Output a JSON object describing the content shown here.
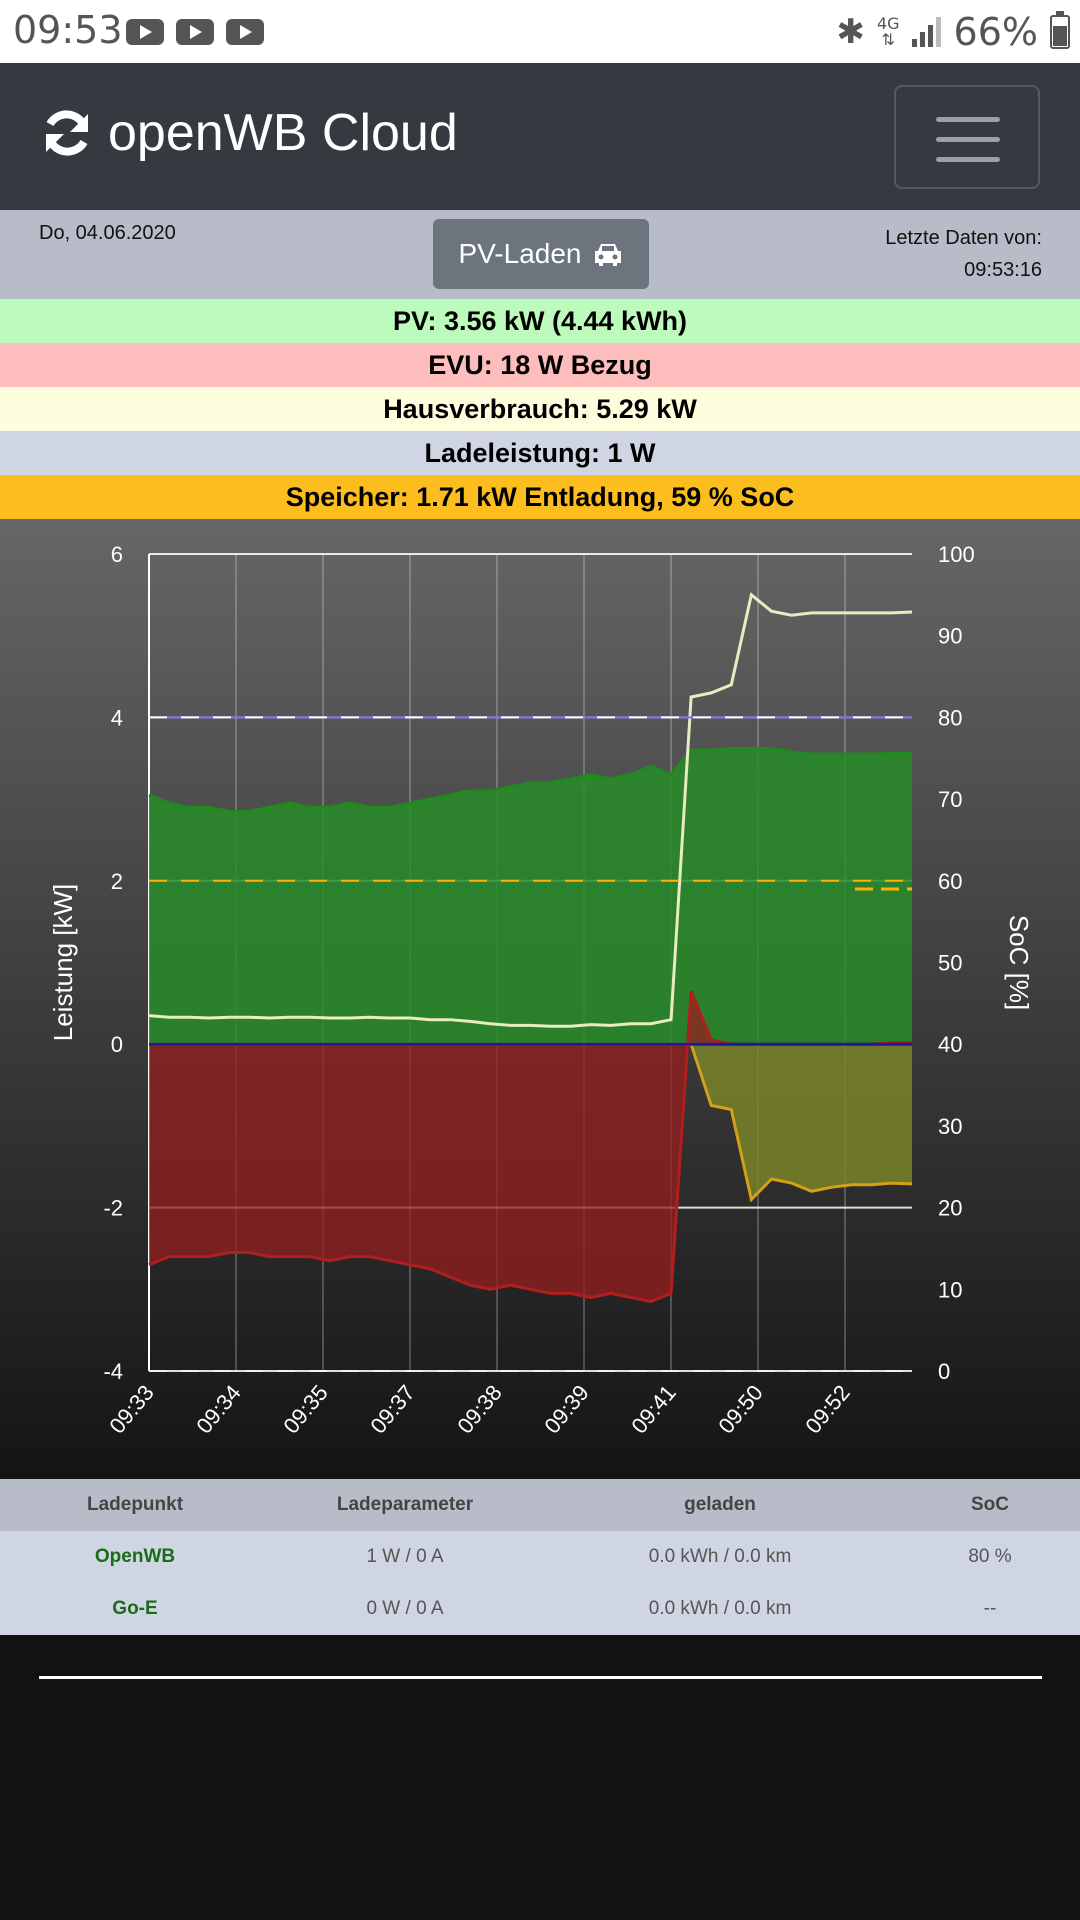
{
  "statusbar": {
    "time": "09:53",
    "network": "4G",
    "battery": "66%"
  },
  "header": {
    "title": "openWB Cloud",
    "logo_icon": "sync-icon",
    "menu_icon": "hamburger-icon"
  },
  "info": {
    "date": "Do, 04.06.2020",
    "mode_button": "PV-Laden",
    "mode_icon": "car-icon",
    "last_data_label": "Letzte Daten von:",
    "last_data_time": "09:53:16"
  },
  "stats": [
    {
      "text": "PV: 3.56 kW (4.44 kWh)",
      "color": "#bdfbbd"
    },
    {
      "text": "EVU: 18 W Bezug",
      "color": "#fdbdbd"
    },
    {
      "text": "Hausverbrauch: 5.29 kW",
      "color": "#fefedf"
    },
    {
      "text": "Ladeleistung: 1 W",
      "color": "#d0d5e4"
    },
    {
      "text": "Speicher: 1.71 kW Entladung, 59 % SoC",
      "color": "#fcbe1e"
    }
  ],
  "chart_data": {
    "type": "line",
    "x_ticks": [
      "09:33",
      "09:34",
      "09:35",
      "09:37",
      "09:38",
      "09:39",
      "09:41",
      "09:50",
      "09:52"
    ],
    "ylabel": "Leistung [kW]",
    "y2label": "SoC [%]",
    "ylim": [
      -4,
      6
    ],
    "y2lim": [
      0,
      100
    ],
    "y_ticks": [
      6,
      4,
      2,
      0,
      -2,
      -4
    ],
    "y2_ticks": [
      100,
      90,
      80,
      70,
      60,
      50,
      40,
      30,
      20,
      10,
      0
    ],
    "series": [
      {
        "color": "#1f8a1f",
        "values": [
          3.05,
          2.95,
          2.9,
          2.9,
          2.85,
          2.85,
          2.9,
          2.95,
          2.9,
          2.9,
          2.95,
          2.9,
          2.9,
          2.95,
          3.0,
          3.05,
          3.1,
          3.1,
          3.15,
          3.2,
          3.2,
          3.25,
          3.3,
          3.25,
          3.3,
          3.4,
          3.3,
          3.6,
          3.6,
          3.62,
          3.62,
          3.62,
          3.58,
          3.55,
          3.55,
          3.55,
          3.55,
          3.56,
          3.56
        ]
      },
      {
        "color": "#b01e1e",
        "values": [
          -2.7,
          -2.6,
          -2.6,
          -2.6,
          -2.55,
          -2.55,
          -2.6,
          -2.6,
          -2.6,
          -2.65,
          -2.6,
          -2.6,
          -2.65,
          -2.7,
          -2.75,
          -2.85,
          -2.95,
          -3.0,
          -2.95,
          -3.0,
          -3.05,
          -3.05,
          -3.1,
          -3.05,
          -3.1,
          -3.15,
          -3.05,
          0.65,
          0.05,
          0.0,
          0.0,
          0.0,
          0.0,
          0.0,
          0.0,
          0.0,
          0.0,
          0.02,
          0.02
        ]
      },
      {
        "color": "#d4a017",
        "values": [
          0,
          0,
          0,
          0,
          0,
          0,
          0,
          0,
          0,
          0,
          0,
          0,
          0,
          0,
          0,
          0,
          0,
          0,
          0,
          0,
          0,
          0,
          0,
          0,
          0,
          0,
          0,
          0,
          -0.75,
          -0.8,
          -1.9,
          -1.65,
          -1.7,
          -1.8,
          -1.75,
          -1.72,
          -1.72,
          -1.7,
          -1.71
        ]
      },
      {
        "color": "#e8ecc0",
        "values": [
          0.35,
          0.33,
          0.33,
          0.32,
          0.33,
          0.33,
          0.32,
          0.33,
          0.33,
          0.32,
          0.32,
          0.33,
          0.32,
          0.32,
          0.3,
          0.3,
          0.28,
          0.25,
          0.23,
          0.23,
          0.22,
          0.22,
          0.24,
          0.23,
          0.25,
          0.25,
          0.3,
          4.25,
          4.3,
          4.4,
          5.5,
          5.3,
          5.25,
          5.28,
          5.28,
          5.28,
          5.28,
          5.28,
          5.29
        ]
      },
      {
        "color": "#7070ff",
        "values": [
          4
        ]
      },
      {
        "color": "#ffb000",
        "values": [
          2
        ]
      }
    ]
  },
  "table": {
    "headers": [
      "Ladepunkt",
      "Ladeparameter",
      "geladen",
      "SoC"
    ],
    "rows": [
      [
        "OpenWB",
        "1 W / 0 A",
        "0.0 kWh / 0.0 km",
        "80 %"
      ],
      [
        "Go-E",
        "0 W / 0 A",
        "0.0 kWh / 0.0 km",
        "--"
      ]
    ]
  }
}
